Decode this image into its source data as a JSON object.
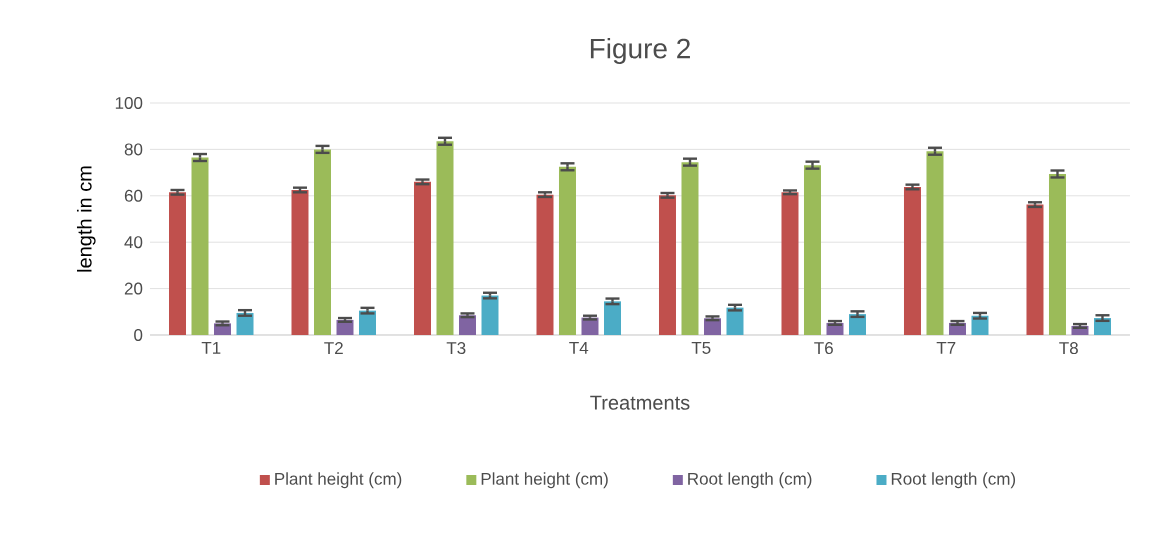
{
  "chart_data": {
    "type": "bar",
    "title": "Figure 2",
    "xlabel": "Treatments",
    "ylabel": "length in cm",
    "categories": [
      "T1",
      "T2",
      "T3",
      "T4",
      "T5",
      "T6",
      "T7",
      "T8"
    ],
    "series": [
      {
        "name": "Plant height (cm)",
        "color": "#c0504d",
        "values": [
          61.5,
          62.5,
          66,
          60.5,
          60.2,
          61.5,
          63.8,
          56.2
        ],
        "errors": [
          1,
          1,
          1,
          1,
          1,
          0.8,
          1,
          1
        ]
      },
      {
        "name": "Plant height (cm)",
        "color": "#9bbb59",
        "values": [
          76.5,
          80,
          83.5,
          72.5,
          74.5,
          73.2,
          79.2,
          69.4
        ],
        "errors": [
          1.5,
          1.5,
          1.5,
          1.5,
          1.5,
          1.5,
          1.5,
          1.5
        ]
      },
      {
        "name": "Root length (cm)",
        "color": "#8064a2",
        "values": [
          5,
          6.5,
          8.5,
          7.5,
          7.2,
          5.2,
          5.2,
          3.9
        ],
        "errors": [
          0.8,
          0.8,
          0.8,
          0.8,
          0.8,
          0.8,
          0.8,
          0.8
        ]
      },
      {
        "name": "Root length (cm)",
        "color": "#4bacc6",
        "values": [
          9.5,
          10.5,
          17,
          14.5,
          11.8,
          9,
          8.3,
          7.3
        ],
        "errors": [
          1.2,
          1.2,
          1.2,
          1.2,
          1.2,
          1.2,
          1.2,
          1.2
        ]
      }
    ],
    "ylim": [
      0,
      100
    ],
    "yticks": [
      0,
      20,
      40,
      60,
      80,
      100
    ],
    "grid": "y",
    "legend": "bottom"
  }
}
